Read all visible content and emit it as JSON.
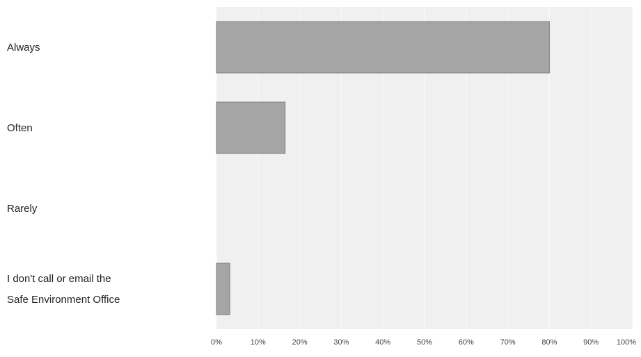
{
  "chart_data": {
    "type": "bar",
    "orientation": "horizontal",
    "title": "",
    "xlabel": "",
    "ylabel": "",
    "categories": [
      [
        "Always"
      ],
      [
        "Often"
      ],
      [
        "Rarely"
      ],
      [
        "I don't call or email the",
        "Safe Environment Office"
      ]
    ],
    "values": [
      80.0,
      16.5,
      0.0,
      3.2
    ],
    "xlim": [
      0,
      100
    ],
    "ticks": [
      "0%",
      "10%",
      "20%",
      "30%",
      "40%",
      "50%",
      "60%",
      "70%",
      "80%",
      "90%",
      "100%"
    ],
    "grid": true,
    "colors": {
      "bar": "#a5a5a5",
      "bar_border": "#7d7d7d",
      "plot_background": "#f0f0f0",
      "gridline": "#fbfbfb"
    }
  }
}
